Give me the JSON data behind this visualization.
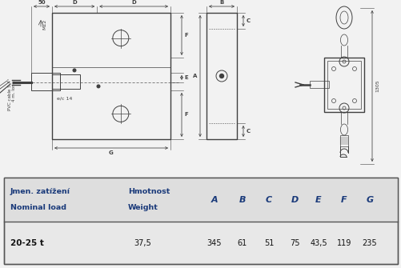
{
  "bg_color": "#f2f2f2",
  "table_header_bg": "#e0e0e0",
  "table_data_bg": "#f5f5f5",
  "table_border": "#555555",
  "header_color": "#1a3a7a",
  "drawing_color": "#404040",
  "table": {
    "col1_header1": "Jmen. zatížení",
    "col1_header2": "Nominal load",
    "col2_header1": "Hmotnost",
    "col2_header2": "Weight",
    "col_letters": [
      "A",
      "B",
      "C",
      "D",
      "E",
      "F",
      "G"
    ],
    "row_label": "20-25 t",
    "row_weight": "37,5",
    "row_values": [
      "345",
      "61",
      "51",
      "75",
      "43,5",
      "119",
      "235"
    ]
  }
}
